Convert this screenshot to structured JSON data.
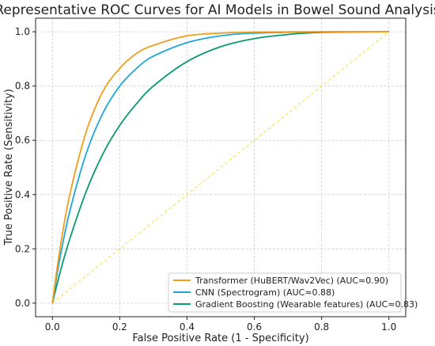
{
  "chart_data": {
    "type": "line",
    "title": "Representative ROC Curves for AI Models in Bowel Sound Analysis",
    "xlabel": "False Positive Rate (1 - Specificity)",
    "ylabel": "True Positive Rate (Sensitivity)",
    "xlim": [
      -0.05,
      1.05
    ],
    "ylim": [
      -0.05,
      1.05
    ],
    "xticks": [
      "0.0",
      "0.2",
      "0.4",
      "0.6",
      "0.8",
      "1.0"
    ],
    "yticks": [
      "0.0",
      "0.2",
      "0.4",
      "0.6",
      "0.8",
      "1.0"
    ],
    "grid": true,
    "legend_position": "bottom-right",
    "series": [
      {
        "name": "Transformer (HuBERT/Wav2Vec) (AUC≈0.90)",
        "color": "#f29e1b",
        "style": "solid",
        "x": [
          0.0,
          0.02,
          0.05,
          0.1,
          0.15,
          0.2,
          0.25,
          0.3,
          0.4,
          0.5,
          0.6,
          0.8,
          1.0
        ],
        "y": [
          0.0,
          0.18,
          0.39,
          0.63,
          0.78,
          0.865,
          0.92,
          0.95,
          0.985,
          0.995,
          0.999,
          1.0,
          1.0
        ]
      },
      {
        "name": "CNN (Spectrogram) (AUC≈0.88)",
        "color": "#1fa8d6",
        "style": "solid",
        "x": [
          0.0,
          0.02,
          0.05,
          0.1,
          0.15,
          0.2,
          0.25,
          0.3,
          0.4,
          0.5,
          0.6,
          0.8,
          1.0
        ],
        "y": [
          0.0,
          0.15,
          0.33,
          0.55,
          0.7,
          0.8,
          0.865,
          0.91,
          0.96,
          0.985,
          0.995,
          1.0,
          1.0
        ]
      },
      {
        "name": "Gradient Boosting (Wearable features) (AUC≈0.83)",
        "color": "#0a9a72",
        "style": "solid",
        "x": [
          0.0,
          0.02,
          0.05,
          0.1,
          0.15,
          0.2,
          0.25,
          0.3,
          0.4,
          0.5,
          0.6,
          0.7,
          0.8,
          1.0
        ],
        "y": [
          0.0,
          0.1,
          0.23,
          0.41,
          0.55,
          0.655,
          0.735,
          0.8,
          0.89,
          0.945,
          0.975,
          0.99,
          0.998,
          1.0
        ]
      },
      {
        "name": "",
        "color": "#f5e13a",
        "style": "dashed",
        "x": [
          0.0,
          1.0
        ],
        "y": [
          0.0,
          1.0
        ]
      }
    ]
  }
}
